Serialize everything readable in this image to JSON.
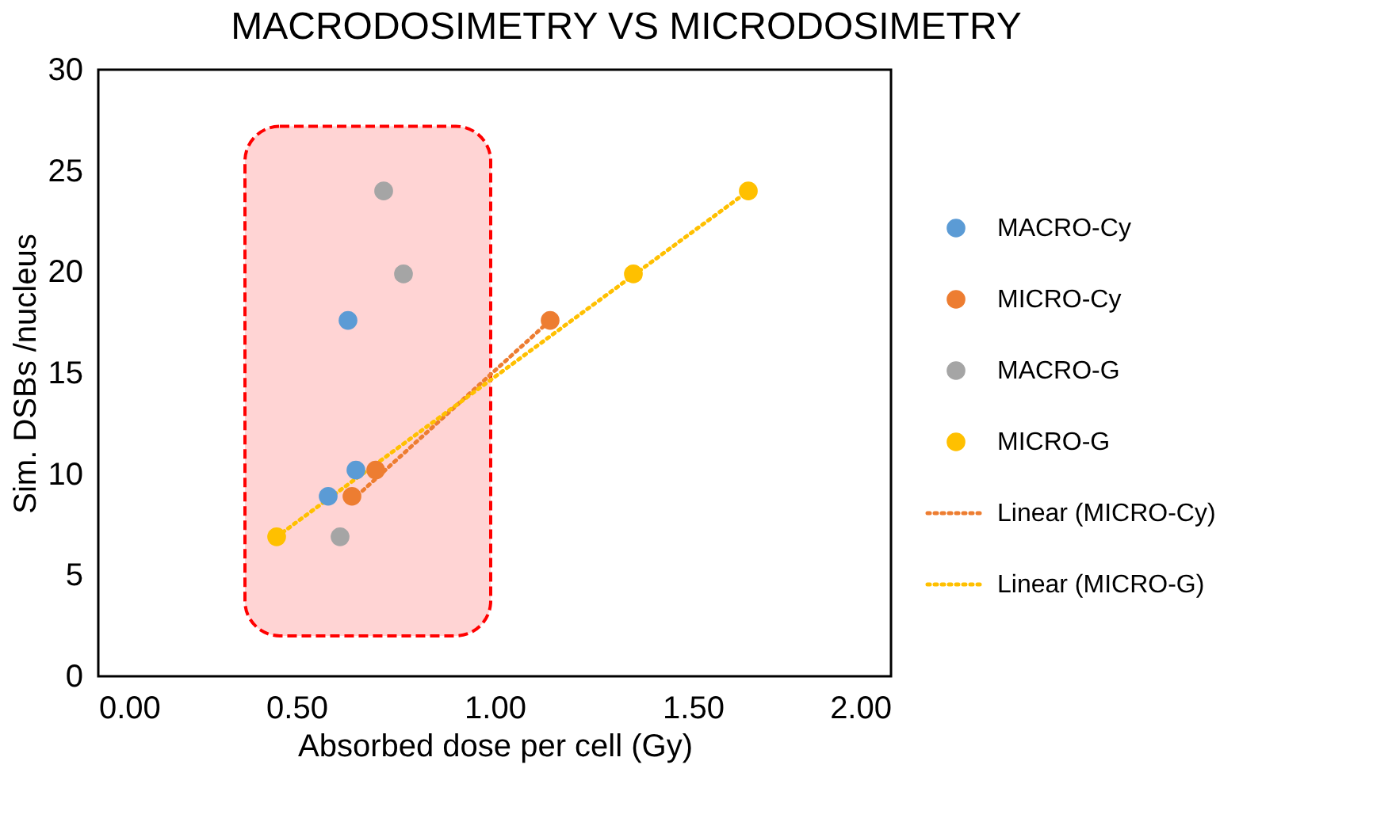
{
  "chart_data": {
    "type": "scatter",
    "title": "MACRODOSIMETRY VS MICRODOSIMETRY",
    "xlabel": "Absorbed dose per cell (Gy)",
    "ylabel": "Sim. DSBs /nucleus",
    "series": [
      {
        "name": "MACRO-Cy",
        "color": "#5b9bd5",
        "marker": "circle",
        "x": [
          0.63,
          0.58,
          0.65
        ],
        "values": [
          17.6,
          8.9,
          10.2
        ]
      },
      {
        "name": "MICRO-Cy",
        "color": "#ed7d31",
        "marker": "circle",
        "x": [
          0.64,
          0.7,
          1.14
        ],
        "values": [
          8.9,
          10.2,
          17.6
        ]
      },
      {
        "name": "MACRO-G",
        "color": "#a5a5a5",
        "marker": "circle",
        "x": [
          0.72,
          0.77,
          0.61
        ],
        "values": [
          24.0,
          19.9,
          6.9
        ]
      },
      {
        "name": "MICRO-G",
        "color": "#ffc000",
        "marker": "circle",
        "x": [
          0.45,
          1.35,
          1.64
        ],
        "values": [
          6.9,
          19.9,
          24.0
        ]
      },
      {
        "name": "Linear (MICRO-Cy)",
        "type": "line",
        "line_style": "dotted",
        "marker": "none",
        "color": "#ed7d31",
        "x": [
          0.64,
          1.14
        ],
        "values": [
          8.7,
          17.6
        ]
      },
      {
        "name": "Linear (MICRO-G)",
        "type": "line",
        "line_style": "dotted",
        "marker": "none",
        "color": "#ffc000",
        "x": [
          0.45,
          1.64
        ],
        "values": [
          6.9,
          24.0
        ]
      }
    ],
    "bands": [
      {
        "axis": "x",
        "from": 0.37,
        "to": 0.99,
        "color": "#ff0000"
      }
    ],
    "xlim": [
      0,
      2
    ],
    "xticks": [
      {
        "value": 0,
        "label": "0.00"
      },
      {
        "value": 0.5,
        "label": "0.50"
      },
      {
        "value": 1,
        "label": "1.00"
      },
      {
        "value": 1.5,
        "label": "1.50"
      },
      {
        "value": 2,
        "label": "2.00"
      }
    ],
    "ylim": [
      0,
      30
    ],
    "yticks": [
      0,
      5,
      10,
      15,
      20,
      25,
      30
    ],
    "grid": false,
    "legend": "right"
  }
}
